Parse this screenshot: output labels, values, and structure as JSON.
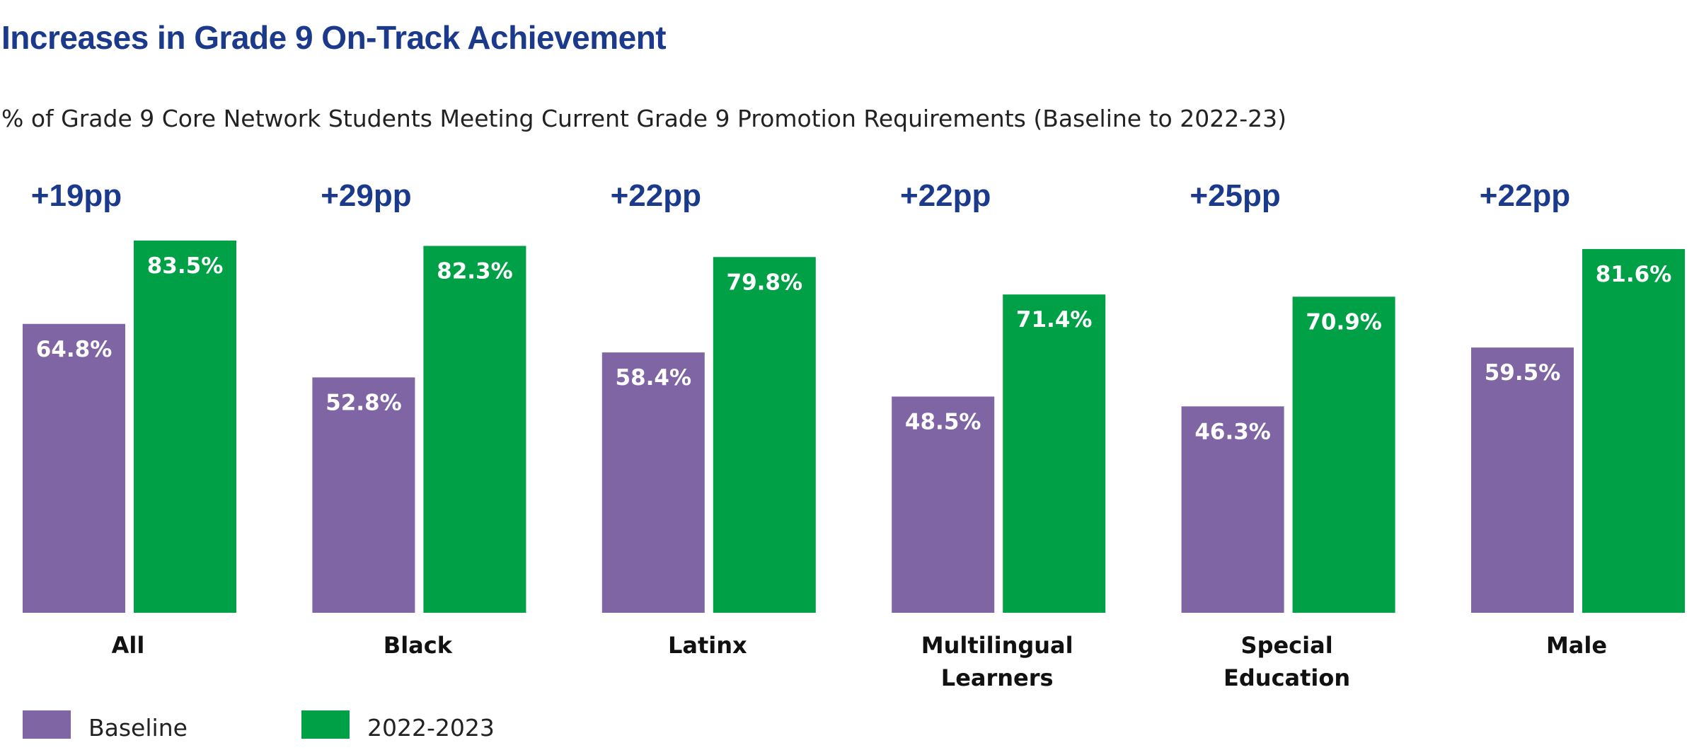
{
  "chart_data": {
    "type": "bar",
    "title": "Increases in Grade 9 On-Track Achievement",
    "subtitle": "% of Grade 9 Core Network Students Meeting Current Grade 9 Promotion Requirements (Baseline to 2022-23)",
    "categories": [
      [
        "All"
      ],
      [
        "Black"
      ],
      [
        "Latinx"
      ],
      [
        "Multilingual",
        "Learners"
      ],
      [
        "Special",
        "Education"
      ],
      [
        "Male"
      ]
    ],
    "series": [
      {
        "name": "Baseline",
        "color": "#7f65a3",
        "values": [
          64.8,
          52.8,
          58.4,
          48.5,
          46.3,
          59.5
        ],
        "labels": [
          "64.8%",
          "52.8%",
          "58.4%",
          "48.5%",
          "46.3%",
          "59.5%"
        ]
      },
      {
        "name": "2022-2023",
        "color": "#00a046",
        "values": [
          83.5,
          82.3,
          79.8,
          71.4,
          70.9,
          81.6
        ],
        "labels": [
          "83.5%",
          "82.3%",
          "79.8%",
          "71.4%",
          "70.9%",
          "81.6%"
        ]
      }
    ],
    "differences": [
      "+19pp",
      "+29pp",
      "+22pp",
      "+22pp",
      "+25pp",
      "+22pp"
    ],
    "difference_color": "#1b3a8c",
    "ylim": [
      0,
      100
    ],
    "grid": false,
    "xlabel": "",
    "ylabel": "",
    "legend_position": "bottom-left"
  }
}
